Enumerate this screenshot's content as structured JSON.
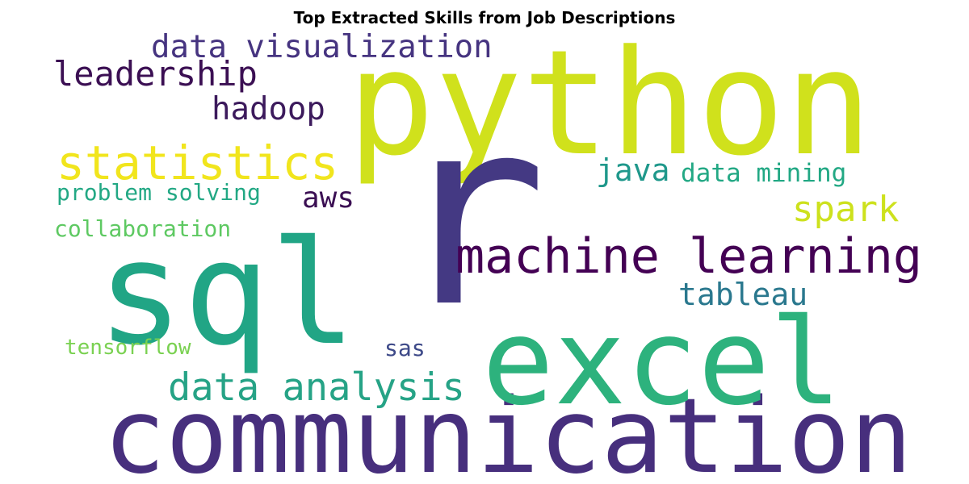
{
  "chart_data": {
    "type": "wordcloud",
    "title": "Top Extracted Skills from Job Descriptions",
    "words": [
      {
        "text": "python",
        "color": "#d0e11c"
      },
      {
        "text": "r",
        "color": "#443983"
      },
      {
        "text": "communication",
        "color": "#472f7d"
      },
      {
        "text": "excel",
        "color": "#2db27d"
      },
      {
        "text": "sql",
        "color": "#21a585"
      },
      {
        "text": "machine learning",
        "color": "#440154"
      },
      {
        "text": "statistics",
        "color": "#f1e51d"
      },
      {
        "text": "data analysis",
        "color": "#26a386"
      },
      {
        "text": "data visualization",
        "color": "#463480"
      },
      {
        "text": "leadership",
        "color": "#3b0f53"
      },
      {
        "text": "hadoop",
        "color": "#3c1a5c"
      },
      {
        "text": "spark",
        "color": "#cde11d"
      },
      {
        "text": "tableau",
        "color": "#2a788e"
      },
      {
        "text": "java",
        "color": "#1f988b"
      },
      {
        "text": "data mining",
        "color": "#22a884"
      },
      {
        "text": "aws",
        "color": "#3b0f53"
      },
      {
        "text": "problem solving",
        "color": "#22a884"
      },
      {
        "text": "collaboration",
        "color": "#5ec962"
      },
      {
        "text": "tensorflow",
        "color": "#7ad151"
      },
      {
        "text": "sas",
        "color": "#3e4a89"
      }
    ]
  }
}
